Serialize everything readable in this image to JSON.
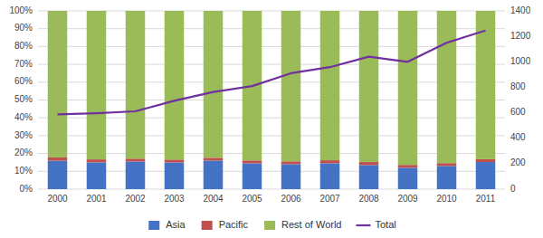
{
  "chart_data": {
    "type": "bar",
    "stacked": true,
    "grid": true,
    "legend": "bottom",
    "categories": [
      "2000",
      "2001",
      "2002",
      "2003",
      "2004",
      "2005",
      "2006",
      "2007",
      "2008",
      "2009",
      "2010",
      "2011"
    ],
    "series": [
      {
        "name": "Asia",
        "color": "#4472C4",
        "values": [
          0.16,
          0.15,
          0.155,
          0.15,
          0.16,
          0.145,
          0.14,
          0.145,
          0.135,
          0.12,
          0.13,
          0.152
        ]
      },
      {
        "name": "Pacific",
        "color": "#C0504D",
        "values": [
          0.018,
          0.017,
          0.016,
          0.016,
          0.016,
          0.016,
          0.016,
          0.017,
          0.017,
          0.016,
          0.016,
          0.016
        ]
      },
      {
        "name": "Rest of World",
        "color": "#9BBB59",
        "values": [
          0.822,
          0.833,
          0.829,
          0.834,
          0.824,
          0.839,
          0.844,
          0.838,
          0.848,
          0.864,
          0.854,
          0.832
        ]
      },
      {
        "name": "Total",
        "type": "line",
        "axis": "y2",
        "color": "#7030A0",
        "values": [
          587,
          596,
          611,
          694,
          763,
          809,
          910,
          958,
          1040,
          1000,
          1150,
          1245
        ]
      }
    ],
    "ylim": [
      0,
      1.0
    ],
    "yticks": [
      {
        "value": 0.0,
        "label": "0%"
      },
      {
        "value": 0.1,
        "label": "10%"
      },
      {
        "value": 0.2,
        "label": "20%"
      },
      {
        "value": 0.3,
        "label": "30%"
      },
      {
        "value": 0.4,
        "label": "40%"
      },
      {
        "value": 0.5,
        "label": "50%"
      },
      {
        "value": 0.6,
        "label": "60%"
      },
      {
        "value": 0.7,
        "label": "70%"
      },
      {
        "value": 0.8,
        "label": "80%"
      },
      {
        "value": 0.9,
        "label": "90%"
      },
      {
        "value": 1.0,
        "label": "100%"
      }
    ],
    "y2lim": [
      0,
      1400
    ],
    "y2ticks": [
      0,
      200,
      400,
      600,
      800,
      1000,
      1200,
      1400
    ]
  }
}
